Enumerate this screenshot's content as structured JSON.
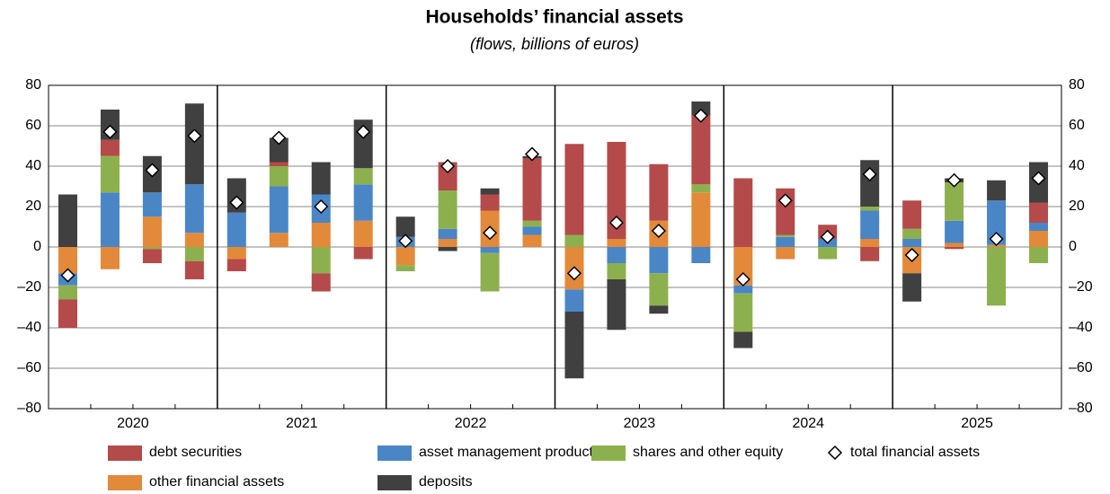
{
  "chart_data": {
    "type": "stacked_bar",
    "title": "Households’ financial assets",
    "subtitle": "(flows, billions of euros)",
    "categories": [
      null,
      null,
      null,
      null,
      null,
      null,
      null,
      null,
      null,
      null,
      null,
      null,
      null,
      null,
      null,
      null,
      null,
      null,
      null,
      null,
      null,
      null,
      null,
      null
    ],
    "groups": [
      "2020",
      "2021",
      "2022",
      "2023",
      "2024",
      "2025"
    ],
    "series": [
      {
        "name": "other financial assets",
        "color": "#e2893a",
        "values": [
          -13,
          -11,
          15,
          7,
          -6,
          7,
          12,
          13,
          -9,
          4,
          18,
          6,
          -21,
          4,
          13,
          27,
          -19,
          -6,
          0,
          4,
          -13,
          2,
          1,
          8
        ]
      },
      {
        "name": "asset management products",
        "color": "#4a86c6",
        "values": [
          -6,
          27,
          12,
          24,
          17,
          23,
          14,
          18,
          5,
          5,
          -3,
          4,
          -11,
          -8,
          -13,
          -8,
          -4,
          5,
          4,
          14,
          4,
          11,
          22,
          4
        ]
      },
      {
        "name": "shares and other equity",
        "color": "#8db04e",
        "values": [
          -7,
          18,
          -1,
          -7,
          0,
          10,
          -13,
          8,
          -3,
          19,
          -19,
          3,
          6,
          -8,
          -16,
          4,
          -19,
          1,
          -6,
          2,
          5,
          19,
          -29,
          -8
        ]
      },
      {
        "name": "debt securities",
        "color": "#b44a4a",
        "values": [
          -14,
          8,
          -7,
          -9,
          -6,
          2,
          -9,
          -6,
          0,
          14,
          8,
          31,
          45,
          48,
          28,
          34,
          34,
          23,
          7,
          -7,
          14,
          -1,
          0,
          10
        ]
      },
      {
        "name": "deposits",
        "color": "#404040",
        "values": [
          26,
          15,
          18,
          40,
          17,
          12,
          16,
          24,
          10,
          -2,
          3,
          1,
          -33,
          -25,
          -4,
          7,
          -8,
          0,
          0,
          23,
          -14,
          2,
          10,
          20
        ]
      }
    ],
    "total": {
      "name": "total financial assets",
      "values": [
        -14,
        57,
        38,
        55,
        22,
        54,
        20,
        57,
        3,
        40,
        7,
        46,
        -13,
        12,
        8,
        65,
        -16,
        23,
        5,
        36,
        -4,
        33,
        4,
        34
      ]
    },
    "ylim": [
      -80,
      80
    ],
    "yticks": [
      {
        "value": -80,
        "label": "–80"
      },
      {
        "value": -60,
        "label": "–60"
      },
      {
        "value": -40,
        "label": "–40"
      },
      {
        "value": -20,
        "label": "–20"
      },
      0,
      20,
      40,
      60,
      80
    ],
    "y2lim": [
      -80,
      80
    ],
    "y2ticks": [
      {
        "value": -80,
        "label": "–80"
      },
      {
        "value": -60,
        "label": "–60"
      },
      {
        "value": -40,
        "label": "–40"
      },
      {
        "value": -20,
        "label": "–20"
      },
      0,
      20,
      40,
      60,
      80
    ],
    "grid": true
  }
}
